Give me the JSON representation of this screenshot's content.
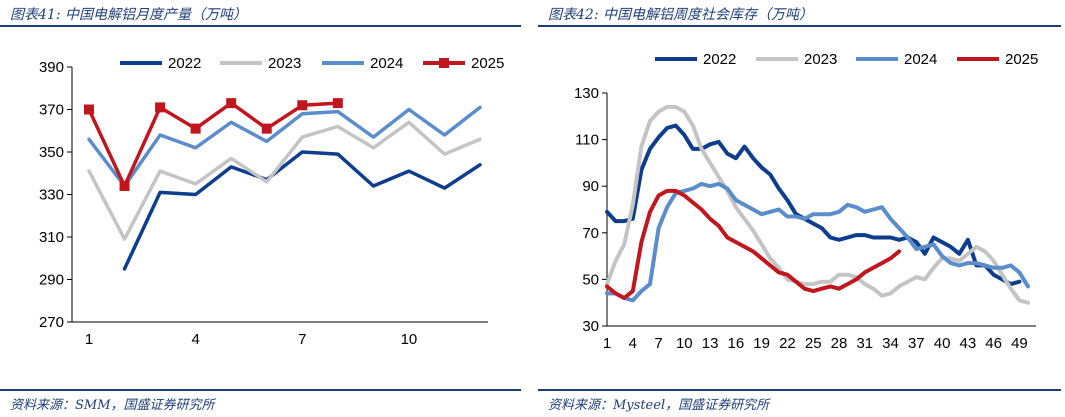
{
  "left_panel": {
    "title": "图表41:  中国电解铝月度产量（万吨）",
    "source": "资料来源：SMM，国盛证券研究所"
  },
  "right_panel": {
    "title": "图表42:  中国电解铝周度社会库存（万吨）",
    "source": "资料来源：Mysteel，国盛证券研究所"
  },
  "colors": {
    "s2022": "#0d3d8c",
    "s2023": "#c4c4c4",
    "s2024": "#5b8ccc",
    "s2025": "#c0171f",
    "rule": "#1f3f7a"
  },
  "chart_data": [
    {
      "type": "line",
      "title": "中国电解铝月度产量（万吨）",
      "xlabel": "",
      "ylabel": "",
      "xlim": [
        1,
        12
      ],
      "ylim": [
        270,
        390
      ],
      "xticks": [
        1,
        4,
        7,
        10
      ],
      "yticks": [
        270,
        290,
        310,
        330,
        350,
        370,
        390
      ],
      "legend": "top",
      "series": [
        {
          "name": "2022",
          "x": [
            2,
            3,
            4,
            5,
            6,
            7,
            8,
            9,
            10,
            11,
            12
          ],
          "values": [
            295,
            331,
            330,
            343,
            337,
            350,
            349,
            334,
            341,
            333,
            344
          ]
        },
        {
          "name": "2023",
          "x": [
            1,
            2,
            3,
            4,
            5,
            6,
            7,
            8,
            9,
            10,
            11,
            12
          ],
          "values": [
            341,
            309,
            341,
            335,
            347,
            336,
            357,
            362,
            352,
            364,
            349,
            356
          ]
        },
        {
          "name": "2024",
          "x": [
            1,
            2,
            3,
            4,
            5,
            6,
            7,
            8,
            9,
            10,
            11,
            12
          ],
          "values": [
            356,
            334,
            358,
            352,
            364,
            355,
            368,
            369,
            357,
            370,
            358,
            371
          ]
        },
        {
          "name": "2025",
          "x": [
            1,
            2,
            3,
            4,
            5,
            6,
            7,
            8
          ],
          "values": [
            370,
            334,
            371,
            361,
            373,
            361,
            372,
            373
          ],
          "markers": true
        }
      ]
    },
    {
      "type": "line",
      "title": "中国电解铝周度社会库存（万吨）",
      "xlabel": "",
      "ylabel": "",
      "xlim": [
        1,
        50
      ],
      "ylim": [
        30,
        130
      ],
      "xticks": [
        1,
        4,
        7,
        10,
        13,
        16,
        19,
        22,
        25,
        28,
        31,
        34,
        37,
        40,
        43,
        46,
        49
      ],
      "yticks": [
        30,
        50,
        70,
        90,
        110,
        130
      ],
      "legend": "top",
      "series": [
        {
          "name": "2022",
          "x": [
            1,
            2,
            3,
            4,
            5,
            6,
            7,
            8,
            9,
            10,
            11,
            12,
            13,
            14,
            15,
            16,
            17,
            18,
            19,
            20,
            21,
            22,
            23,
            24,
            25,
            26,
            27,
            28,
            29,
            30,
            31,
            32,
            33,
            34,
            35,
            36,
            37,
            38,
            39,
            40,
            41,
            42,
            43,
            44,
            45,
            46,
            47,
            48,
            49
          ],
          "values": [
            79,
            75,
            75,
            76,
            97,
            106,
            111,
            115,
            116,
            112,
            106,
            106,
            108,
            109,
            104,
            102,
            107,
            102,
            98,
            95,
            89,
            84,
            78,
            76,
            74,
            72,
            68,
            67,
            68,
            69,
            69,
            68,
            68,
            68,
            67,
            68,
            66,
            61,
            68,
            66,
            64,
            61,
            67,
            56,
            56,
            52,
            50,
            48,
            49
          ]
        },
        {
          "name": "2023",
          "x": [
            1,
            2,
            3,
            4,
            5,
            6,
            7,
            8,
            9,
            10,
            11,
            12,
            13,
            14,
            15,
            16,
            17,
            18,
            19,
            20,
            21,
            22,
            23,
            24,
            25,
            26,
            27,
            28,
            29,
            30,
            31,
            32,
            33,
            34,
            35,
            36,
            37,
            38,
            39,
            40,
            41,
            42,
            43,
            44,
            45,
            46,
            47,
            48,
            49,
            50
          ],
          "values": [
            48,
            58,
            65,
            82,
            107,
            118,
            122,
            124,
            124,
            122,
            116,
            106,
            100,
            94,
            88,
            81,
            76,
            71,
            65,
            59,
            55,
            50,
            49,
            48,
            48,
            49,
            49,
            52,
            52,
            51,
            48,
            46,
            43,
            44,
            47,
            49,
            51,
            50,
            55,
            59,
            59,
            58,
            61,
            64,
            62,
            58,
            52,
            46,
            41,
            40
          ]
        },
        {
          "name": "2024",
          "x": [
            1,
            2,
            3,
            4,
            5,
            6,
            7,
            8,
            9,
            10,
            11,
            12,
            13,
            14,
            15,
            16,
            17,
            18,
            19,
            20,
            21,
            22,
            23,
            24,
            25,
            26,
            27,
            28,
            29,
            30,
            31,
            32,
            33,
            34,
            35,
            36,
            37,
            38,
            39,
            40,
            41,
            42,
            43,
            44,
            45,
            46,
            47,
            48,
            49,
            50
          ],
          "values": [
            44,
            44,
            42,
            41,
            45,
            48,
            72,
            81,
            87,
            88,
            89,
            91,
            90,
            91,
            89,
            84,
            82,
            80,
            78,
            79,
            80,
            77,
            77,
            76,
            78,
            78,
            78,
            79,
            82,
            81,
            79,
            80,
            81,
            76,
            72,
            68,
            63,
            64,
            65,
            60,
            57,
            56,
            57,
            57,
            56,
            55,
            55,
            56,
            53,
            47
          ]
        },
        {
          "name": "2025",
          "x": [
            1,
            2,
            3,
            4,
            5,
            6,
            7,
            8,
            9,
            10,
            11,
            12,
            13,
            14,
            15,
            16,
            17,
            18,
            19,
            20,
            21,
            22,
            23,
            24,
            25,
            26,
            27,
            28,
            29,
            30,
            31,
            32,
            33,
            34,
            35
          ],
          "values": [
            47,
            44,
            42,
            45,
            66,
            79,
            86,
            88,
            88,
            86,
            83,
            80,
            76,
            73,
            68,
            66,
            64,
            62,
            59,
            56,
            53,
            52,
            49,
            46,
            45,
            46,
            47,
            46,
            48,
            50,
            53,
            55,
            57,
            59,
            62
          ]
        }
      ]
    }
  ]
}
